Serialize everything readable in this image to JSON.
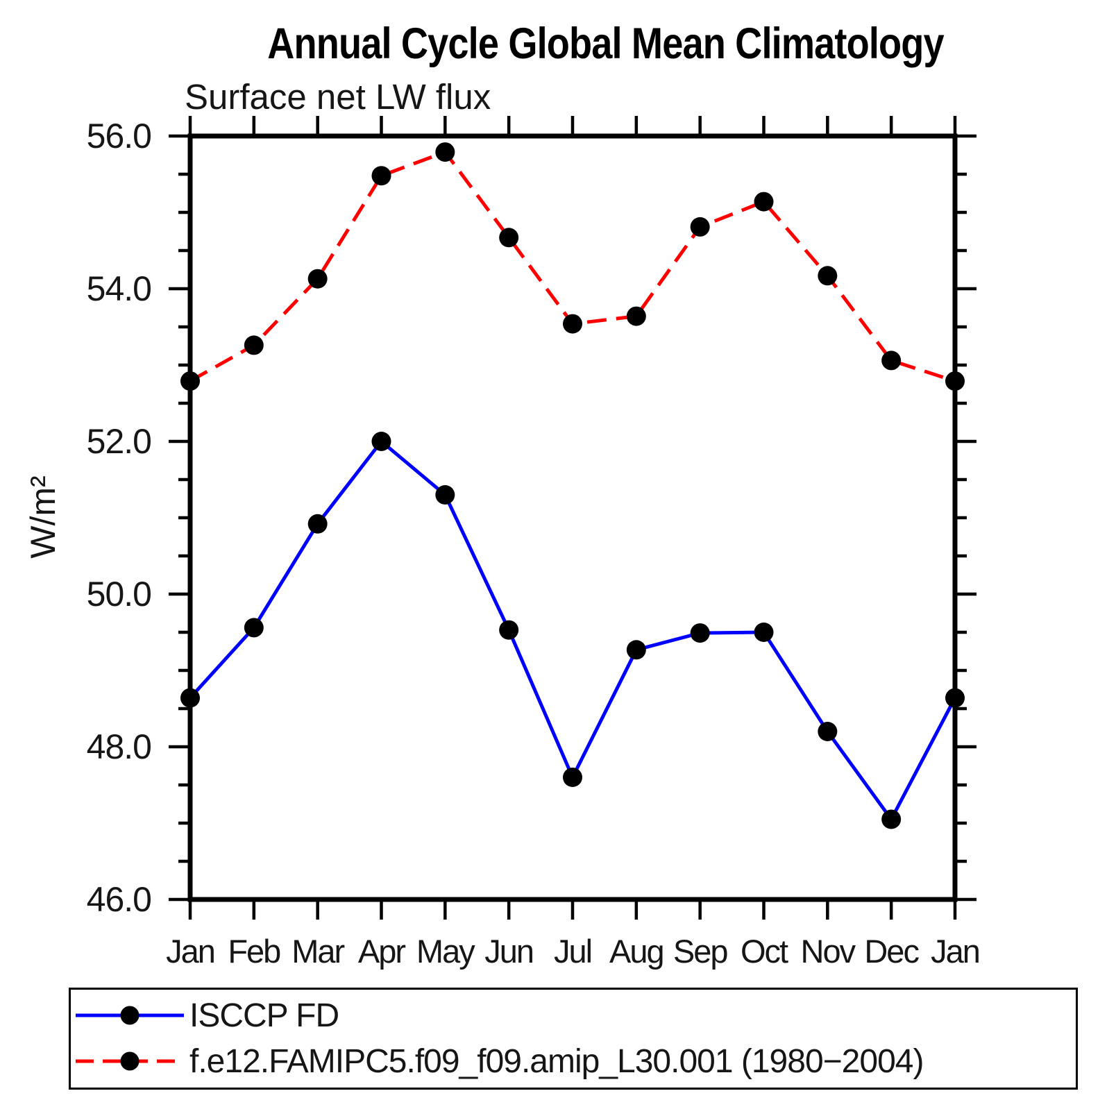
{
  "title": "Annual Cycle Global Mean Climatology",
  "subtitle": "Surface net LW flux",
  "ylabel": "W/m²",
  "chart_data": {
    "type": "line",
    "title": "Annual Cycle Global Mean Climatology",
    "subtitle": "Surface net LW flux",
    "xlabel": "",
    "ylabel": "W/m²",
    "x_categories": [
      "Jan",
      "Feb",
      "Mar",
      "Apr",
      "May",
      "Jun",
      "Jul",
      "Aug",
      "Sep",
      "Oct",
      "Nov",
      "Dec",
      "Jan"
    ],
    "ylim": [
      46.0,
      56.0
    ],
    "ytick_values": [
      46.0,
      48.0,
      50.0,
      52.0,
      54.0,
      56.0
    ],
    "ytick_labels": [
      "46.0",
      "48.0",
      "50.0",
      "52.0",
      "54.0",
      "56.0"
    ],
    "ytick_minor_step": 0.5,
    "grid": false,
    "legend_position": "bottom-left",
    "axis_color": "#000000",
    "series": [
      {
        "name": "ISCCP FD",
        "color": "#0000ff",
        "line_style": "solid",
        "marker": "filled-circle",
        "marker_color": "#000000",
        "values": [
          48.64,
          49.56,
          50.92,
          52.0,
          51.3,
          49.53,
          47.6,
          49.27,
          49.49,
          49.5,
          48.2,
          47.05,
          48.64
        ]
      },
      {
        "name": "f.e12.FAMIPC5.f09_f09.amip_L30.001 (1980−2004)",
        "color": "#ff0000",
        "line_style": "dashed",
        "marker": "filled-circle",
        "marker_color": "#000000",
        "values": [
          52.79,
          53.26,
          54.13,
          55.48,
          55.79,
          54.67,
          53.54,
          53.64,
          54.81,
          55.14,
          54.17,
          53.06,
          52.79
        ]
      }
    ]
  }
}
